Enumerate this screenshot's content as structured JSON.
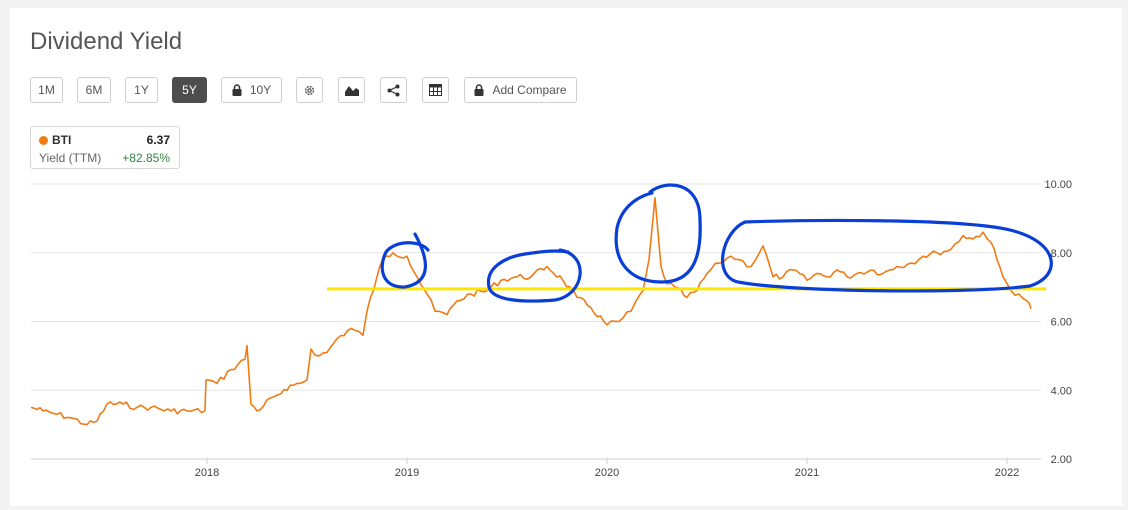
{
  "title": "Dividend Yield",
  "toolbar": {
    "ranges": [
      "1M",
      "6M",
      "1Y",
      "5Y"
    ],
    "active_range": "5Y",
    "locked_range": "10Y",
    "settings_icon": "gear-icon",
    "chart_type_icon": "area-chart-icon",
    "share_icon": "share-icon",
    "table_icon": "table-icon",
    "compare_label": "Add Compare"
  },
  "legend": {
    "ticker": "BTI",
    "value": "6.37",
    "metric": "Yield (TTM)",
    "change": "+82.85%",
    "series_color": "#f07b14",
    "change_color": "#2e8540"
  },
  "chart_data": {
    "type": "line",
    "title": "Dividend Yield",
    "xlabel": "",
    "ylabel": "",
    "xlim": [
      2017.12,
      2022.12
    ],
    "ylim": [
      2.0,
      10.0
    ],
    "x_ticks": [
      "2018",
      "2019",
      "2020",
      "2021",
      "2022"
    ],
    "y_ticks": [
      "2.00",
      "4.00",
      "6.00",
      "8.00",
      "10.00"
    ],
    "grid": "horizontal",
    "axis_position": "right",
    "series": [
      {
        "name": "BTI",
        "color": "#f07b14",
        "x": [
          2017.12,
          2017.18,
          2017.25,
          2017.32,
          2017.4,
          2017.45,
          2017.5,
          2017.58,
          2017.65,
          2017.72,
          2017.82,
          2017.9,
          2017.99,
          2017.995,
          2018.05,
          2018.12,
          2018.19,
          2018.2,
          2018.22,
          2018.25,
          2018.33,
          2018.37,
          2018.4,
          2018.45,
          2018.5,
          2018.52,
          2018.56,
          2018.6,
          2018.65,
          2018.72,
          2018.78,
          2018.8,
          2018.85,
          2018.88,
          2018.93,
          2019.0,
          2019.05,
          2019.1,
          2019.14,
          2019.2,
          2019.25,
          2019.32,
          2019.4,
          2019.47,
          2019.55,
          2019.62,
          2019.7,
          2019.78,
          2019.85,
          2019.92,
          2020.0,
          2020.06,
          2020.12,
          2020.18,
          2020.21,
          2020.24,
          2020.27,
          2020.3,
          2020.34,
          2020.4,
          2020.45,
          2020.5,
          2020.56,
          2020.62,
          2020.66,
          2020.72,
          2020.78,
          2020.83,
          2020.88,
          2020.93,
          2021.0,
          2021.05,
          2021.1,
          2021.15,
          2021.2,
          2021.25,
          2021.32,
          2021.38,
          2021.45,
          2021.52,
          2021.58,
          2021.65,
          2021.72,
          2021.78,
          2021.83,
          2021.88,
          2021.92,
          2021.95,
          2021.98,
          2022.02,
          2022.06,
          2022.1,
          2022.12
        ],
        "values": [
          3.5,
          3.4,
          3.3,
          3.2,
          3.0,
          3.1,
          3.6,
          3.6,
          3.5,
          3.5,
          3.4,
          3.4,
          3.4,
          4.3,
          4.2,
          4.6,
          4.9,
          5.3,
          3.6,
          3.4,
          3.8,
          3.9,
          4.0,
          4.2,
          4.3,
          5.2,
          5.0,
          5.1,
          5.5,
          5.8,
          5.6,
          6.3,
          7.3,
          7.8,
          8.0,
          7.9,
          7.3,
          6.8,
          6.3,
          6.2,
          6.6,
          6.8,
          6.9,
          7.2,
          7.3,
          7.3,
          7.6,
          7.2,
          6.7,
          6.4,
          5.9,
          6.0,
          6.3,
          6.9,
          7.8,
          9.6,
          7.6,
          7.1,
          7.0,
          6.7,
          6.9,
          7.4,
          7.7,
          7.9,
          7.8,
          7.6,
          8.2,
          7.3,
          7.3,
          7.5,
          7.2,
          7.4,
          7.3,
          7.5,
          7.3,
          7.4,
          7.5,
          7.4,
          7.6,
          7.7,
          7.9,
          8.0,
          8.1,
          8.5,
          8.4,
          8.6,
          8.3,
          7.8,
          7.3,
          6.9,
          6.8,
          6.6,
          6.37
        ]
      }
    ],
    "annotations": {
      "horizontal_line": {
        "y": 6.95,
        "color": "#ffe600"
      },
      "circles_color": "#0a3fd6"
    }
  }
}
